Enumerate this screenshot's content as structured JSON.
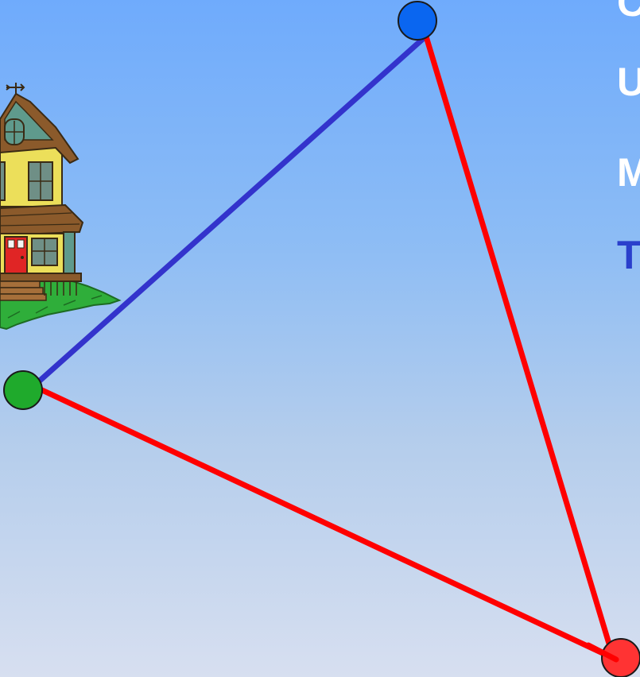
{
  "colors": {
    "background_top": "#6fabfc",
    "background_bottom": "#d7dff0",
    "blue_point": "#0a66f0",
    "green_point": "#1faa2c",
    "red_point": "#ff3333",
    "blue_line": "#3333cc",
    "red_line": "#ff0000",
    "text_white": "#ffffff",
    "text_blue": "#2a3fcc"
  },
  "illustration": {
    "name": "house-clipart"
  },
  "side_text": [
    {
      "text": "C",
      "color": "#ffffff"
    },
    {
      "text": "U",
      "color": "#ffffff"
    },
    {
      "text": "M",
      "color": "#ffffff"
    },
    {
      "text": "T",
      "color": "#2a3fcc"
    }
  ]
}
